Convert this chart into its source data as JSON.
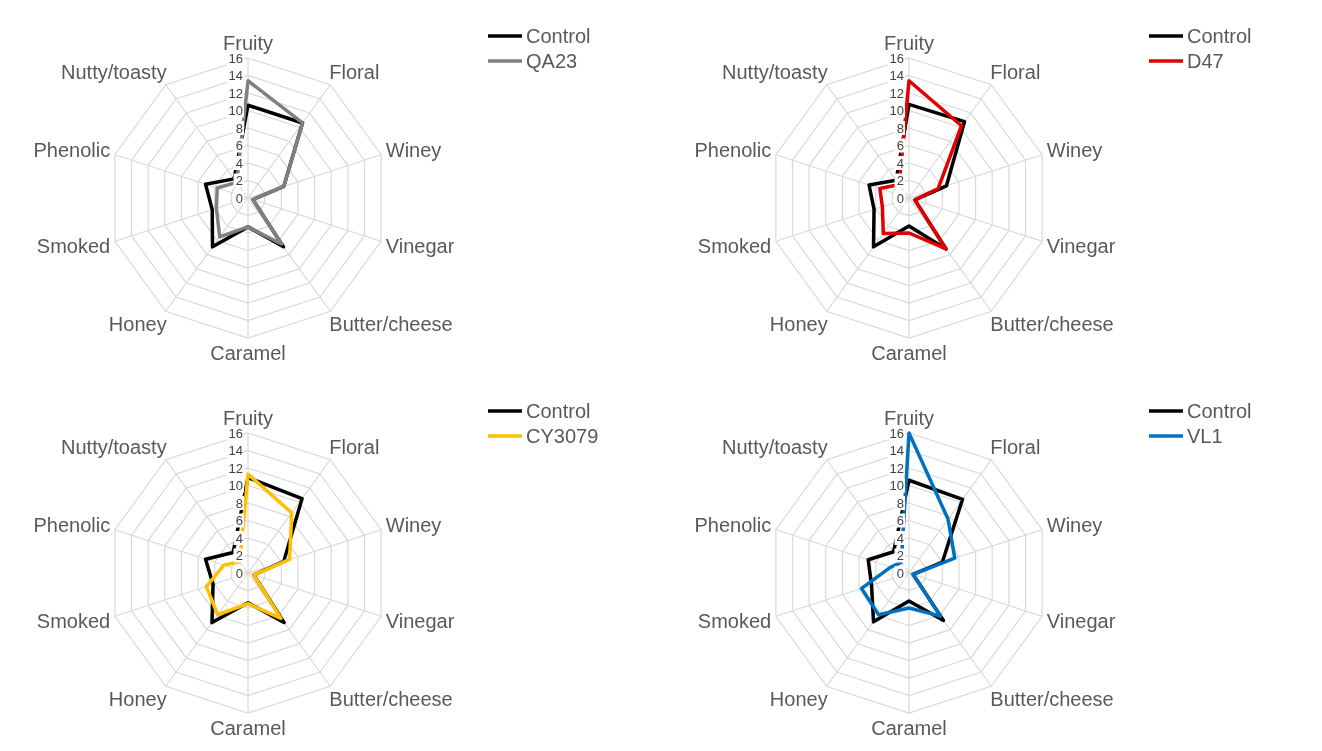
{
  "chart_data": [
    {
      "type": "radar",
      "categories": [
        "Fruity",
        "Floral",
        "Winey",
        "Vinegar",
        "Butter/cheese",
        "Caramel",
        "Honey",
        "Smoked",
        "Phenolic",
        "Nutty/toasty"
      ],
      "ylim": [
        0,
        16
      ],
      "yticks": [
        0,
        2,
        4,
        6,
        8,
        10,
        12,
        14,
        16
      ],
      "grid": true,
      "legend": "top right",
      "series": [
        {
          "name": "Control",
          "color": "#000000",
          "values": [
            10.6,
            10.6,
            4.3,
            0.6,
            6.9,
            3.3,
            6.9,
            4.3,
            5.1,
            2.7
          ]
        },
        {
          "name": "QA23",
          "color": "#808080",
          "values": [
            13.4,
            10.6,
            4.3,
            0.6,
            6.5,
            3.3,
            5.5,
            3.8,
            3.7,
            2.2
          ]
        }
      ]
    },
    {
      "type": "radar",
      "categories": [
        "Fruity",
        "Floral",
        "Winey",
        "Vinegar",
        "Butter/cheese",
        "Caramel",
        "Honey",
        "Smoked",
        "Phenolic",
        "Nutty/toasty"
      ],
      "ylim": [
        0,
        16
      ],
      "yticks": [
        0,
        2,
        4,
        6,
        8,
        10,
        12,
        14,
        16
      ],
      "grid": true,
      "legend": "top right",
      "series": [
        {
          "name": "Control",
          "color": "#000000",
          "values": [
            10.7,
            10.8,
            4.5,
            0.7,
            7.2,
            3.2,
            6.9,
            4.2,
            4.8,
            2.5
          ]
        },
        {
          "name": "D47",
          "color": "#e00000",
          "values": [
            13.4,
            10.2,
            3.5,
            0.7,
            7.2,
            4.0,
            5.0,
            3.2,
            3.5,
            1.9
          ]
        }
      ]
    },
    {
      "type": "radar",
      "categories": [
        "Fruity",
        "Floral",
        "Winey",
        "Vinegar",
        "Butter/cheese",
        "Caramel",
        "Honey",
        "Smoked",
        "Phenolic",
        "Nutty/toasty"
      ],
      "ylim": [
        0,
        16
      ],
      "yticks": [
        0,
        2,
        4,
        6,
        8,
        10,
        12,
        14,
        16
      ],
      "grid": true,
      "legend": "top right",
      "series": [
        {
          "name": "Control",
          "color": "#000000",
          "values": [
            10.9,
            10.5,
            4.3,
            0.7,
            7.0,
            3.4,
            7.0,
            4.2,
            5.1,
            2.9
          ]
        },
        {
          "name": "CY3079",
          "color": "#ffc000",
          "values": [
            11.3,
            8.5,
            5.0,
            0.7,
            6.4,
            3.5,
            5.9,
            5.0,
            2.9,
            1.6
          ]
        }
      ]
    },
    {
      "type": "radar",
      "categories": [
        "Fruity",
        "Floral",
        "Winey",
        "Vinegar",
        "Butter/cheese",
        "Caramel",
        "Honey",
        "Smoked",
        "Phenolic",
        "Nutty/toasty"
      ],
      "ylim": [
        0,
        16
      ],
      "yticks": [
        0,
        2,
        4,
        6,
        8,
        10,
        12,
        14,
        16
      ],
      "grid": true,
      "legend": "top right",
      "series": [
        {
          "name": "Control",
          "color": "#000000",
          "values": [
            10.6,
            10.4,
            4.0,
            0.5,
            6.7,
            3.2,
            6.9,
            4.5,
            4.9,
            3.0
          ]
        },
        {
          "name": "VL1",
          "color": "#0070c0",
          "values": [
            16.0,
            7.6,
            5.5,
            0.5,
            6.1,
            4.0,
            5.9,
            5.7,
            2.2,
            1.5
          ]
        }
      ]
    }
  ]
}
